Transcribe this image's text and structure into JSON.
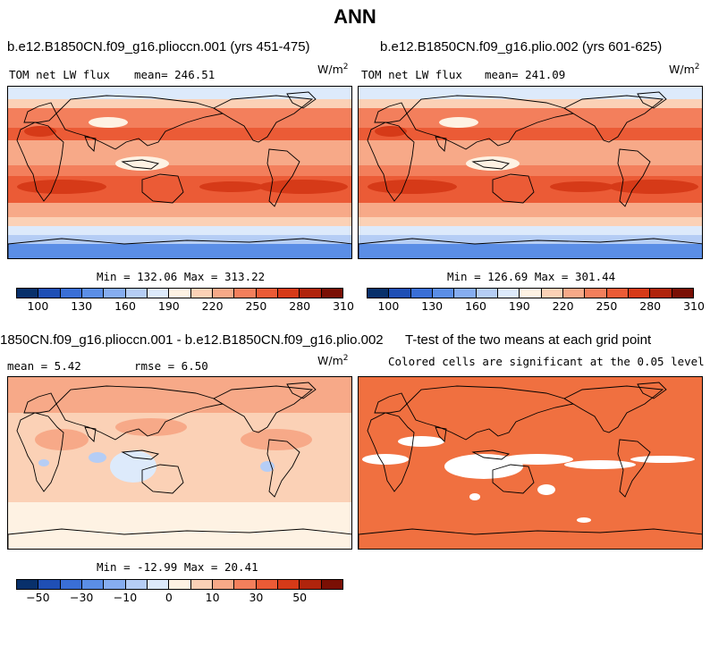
{
  "figure": {
    "title": "ANN"
  },
  "colors": {
    "cmap": [
      "#08306b",
      "#1f4fb5",
      "#3a6fd6",
      "#5b8ee6",
      "#86adf0",
      "#b5cdf5",
      "#ddeafb",
      "#fef2e3",
      "#fbd1b6",
      "#f7a988",
      "#f37f5c",
      "#eb5b36",
      "#d63a18",
      "#b0240c",
      "#7a0f04"
    ],
    "land_line": "#000000",
    "sig": "#f07040"
  },
  "panels": {
    "p1": {
      "title": "b.e12.B1850CN.f09_g16.plioccn.001 (yrs 451-475)",
      "left_label": "TOM net LW flux",
      "mean_label": "mean=  246.51",
      "units": "W/m",
      "units_sup": "2",
      "minmax": "Min = 132.06 Max = 313.22"
    },
    "p2": {
      "title": "b.e12.B1850CN.f09_g16.plio.002 (yrs 601-625)",
      "left_label": "TOM net LW flux",
      "mean_label": "mean=  241.09",
      "units": "W/m",
      "units_sup": "2",
      "minmax": "Min = 126.69 Max = 301.44"
    },
    "p3": {
      "title": "1850CN.f09_g16.plioccn.001 - b.e12.B1850CN.f09_g16.plio.002",
      "mean_label": "mean =    5.42",
      "rmse_label": "rmse =    6.50",
      "units": "W/m",
      "units_sup": "2",
      "minmax": "Min = -12.99 Max = 20.41"
    },
    "p4": {
      "title": "T-test of the two means at each grid point",
      "subtitle": "Colored cells are significant at the 0.05 level"
    }
  },
  "chart_data": [
    {
      "type": "heatmap",
      "title": "b.e12.B1850CN.f09_g16.plioccn.001 (yrs 451-475)",
      "variable": "TOM net LW flux",
      "units": "W/m^2",
      "mean": 246.51,
      "min": 132.06,
      "max": 313.22,
      "colorbar_ticks": [
        100,
        130,
        160,
        190,
        220,
        250,
        280,
        310
      ]
    },
    {
      "type": "heatmap",
      "title": "b.e12.B1850CN.f09_g16.plio.002 (yrs 601-625)",
      "variable": "TOM net LW flux",
      "units": "W/m^2",
      "mean": 241.09,
      "min": 126.69,
      "max": 301.44,
      "colorbar_ticks": [
        100,
        130,
        160,
        190,
        220,
        250,
        280,
        310
      ]
    },
    {
      "type": "heatmap",
      "title": "1850CN.f09_g16.plioccn.001 - b.e12.B1850CN.f09_g16.plio.002",
      "units": "W/m^2",
      "mean": 5.42,
      "rmse": 6.5,
      "min": -12.99,
      "max": 20.41,
      "colorbar_ticks": [
        -50,
        -30,
        -10,
        0,
        10,
        30,
        50
      ]
    },
    {
      "type": "heatmap",
      "title": "T-test of the two means at each grid point",
      "subtitle": "Colored cells are significant at the 0.05 level"
    }
  ]
}
